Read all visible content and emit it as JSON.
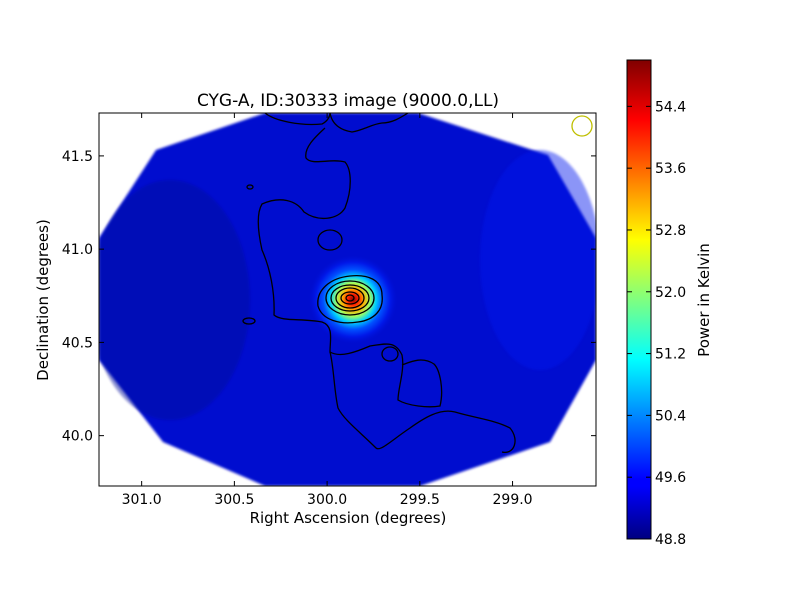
{
  "chart_data": {
    "type": "heatmap",
    "title": "CYG-A, ID:30333 image (9000.0,LL)",
    "xlabel": "Right Ascension (degrees)",
    "ylabel": "Declination (degrees)",
    "xlim": [
      301.23,
      298.55
    ],
    "ylim": [
      39.73,
      41.73
    ],
    "x_axis_inverted": true,
    "xticks": [
      {
        "value": 301.0,
        "label": "301.0"
      },
      {
        "value": 300.5,
        "label": "300.5"
      },
      {
        "value": 300.0,
        "label": "300.0"
      },
      {
        "value": 299.5,
        "label": "299.5"
      },
      {
        "value": 299.0,
        "label": "299.0"
      }
    ],
    "yticks": [
      {
        "value": 40.0,
        "label": "40.0"
      },
      {
        "value": 40.5,
        "label": "40.5"
      },
      {
        "value": 41.0,
        "label": "41.0"
      },
      {
        "value": 41.5,
        "label": "41.5"
      }
    ],
    "colorbar": {
      "label": "Power in Kelvin",
      "colormap": "jet",
      "range": [
        48.8,
        55.0
      ],
      "ticks": [
        "48.8",
        "49.6",
        "50.4",
        "51.2",
        "52.0",
        "52.8",
        "53.6",
        "54.4"
      ]
    },
    "map_shape": "octagon",
    "background_level": 49.1,
    "source": {
      "ra": 299.86,
      "dec": 40.73,
      "peak": 54.9
    },
    "beam_marker_color": "#bfbf00",
    "contour_color": "#000000",
    "grid": false
  }
}
